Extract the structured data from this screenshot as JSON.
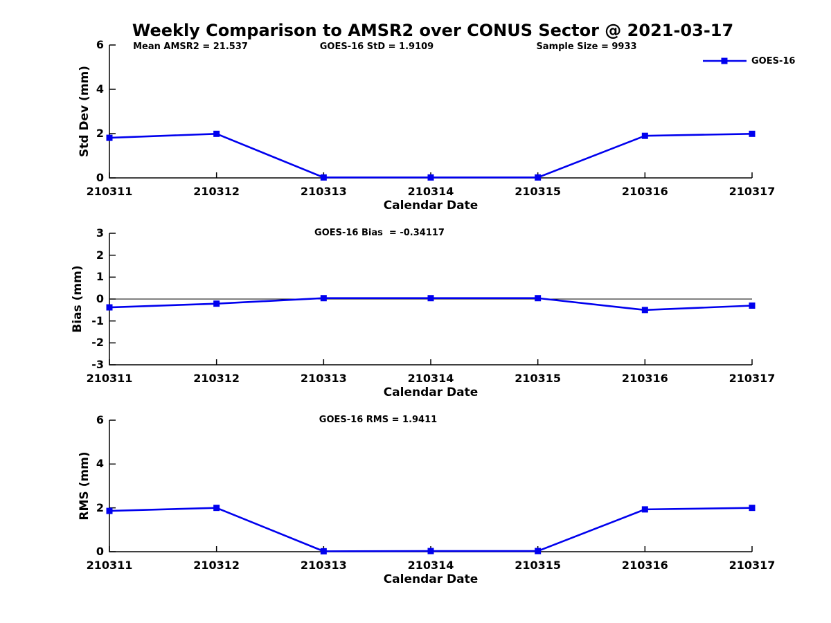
{
  "title": "Weekly Comparison to AMSR2 over CONUS Sector @ 2021-03-17",
  "legend": {
    "label": "GOES-16",
    "line_color": "#0000EE",
    "marker": "filled-square",
    "position": "top-right"
  },
  "chart_data": [
    {
      "type": "line",
      "panel": "std-dev",
      "annotations": [
        "Mean AMSR2 = 21.537",
        "GOES-16 StD = 1.9109",
        "Sample Size = 9933"
      ],
      "xlabel": "Calendar Date",
      "ylabel": "Std Dev (mm)",
      "categories": [
        "210311",
        "210312",
        "210313",
        "210314",
        "210315",
        "210316",
        "210317"
      ],
      "series": [
        {
          "name": "GOES-16",
          "color": "#0000EE",
          "values": [
            1.81,
            1.99,
            0.02,
            0.02,
            0.02,
            1.9,
            1.99
          ]
        }
      ],
      "ylim": [
        0,
        6
      ],
      "yticks": [
        0,
        2,
        4,
        6
      ],
      "zero_line": false,
      "legend_visible": true,
      "grid": false
    },
    {
      "type": "line",
      "panel": "bias",
      "annotations": [
        "GOES-16 Bias  = -0.34117"
      ],
      "xlabel": "Calendar Date",
      "ylabel": "Bias (mm)",
      "categories": [
        "210311",
        "210312",
        "210313",
        "210314",
        "210315",
        "210316",
        "210317"
      ],
      "series": [
        {
          "name": "GOES-16",
          "color": "#0000EE",
          "values": [
            -0.38,
            -0.21,
            0.04,
            0.04,
            0.04,
            -0.5,
            -0.3
          ]
        }
      ],
      "ylim": [
        -3,
        3
      ],
      "yticks": [
        -3,
        -2,
        -1,
        0,
        1,
        2,
        3
      ],
      "zero_line": true,
      "legend_visible": false,
      "grid": false
    },
    {
      "type": "line",
      "panel": "rms",
      "annotations": [
        "GOES-16 RMS = 1.9411"
      ],
      "xlabel": "Calendar Date",
      "ylabel": "RMS (mm)",
      "categories": [
        "210311",
        "210312",
        "210313",
        "210314",
        "210315",
        "210316",
        "210317"
      ],
      "series": [
        {
          "name": "GOES-16",
          "color": "#0000EE",
          "values": [
            1.86,
            2.0,
            0.02,
            0.03,
            0.03,
            1.93,
            2.0
          ]
        }
      ],
      "ylim": [
        0,
        6
      ],
      "yticks": [
        0,
        2,
        4,
        6
      ],
      "zero_line": false,
      "legend_visible": true,
      "grid": false
    }
  ]
}
